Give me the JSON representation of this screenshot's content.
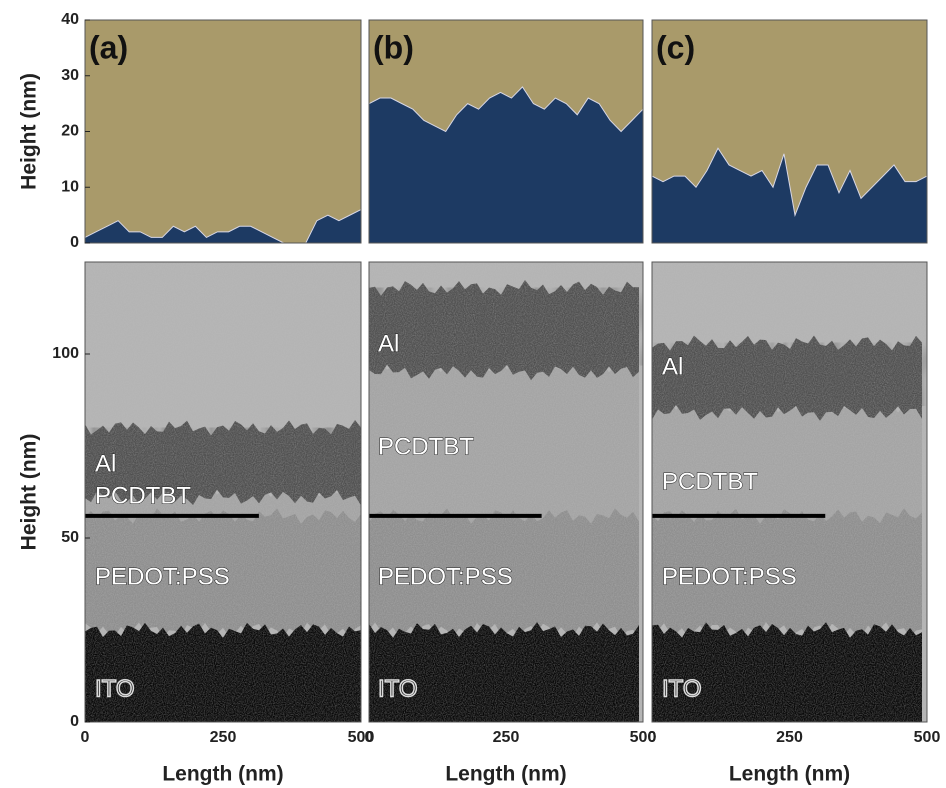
{
  "chart_data": [
    {
      "type": "area",
      "label": "(a)",
      "ylabel": "Height (nm)",
      "color": "#1d3a63",
      "background": "#a99a6a",
      "x": [
        0,
        20,
        40,
        60,
        80,
        100,
        120,
        140,
        160,
        180,
        200,
        220,
        240,
        260,
        280,
        300,
        320,
        340,
        360,
        380,
        400,
        420,
        440,
        460,
        480,
        500
      ],
      "values": [
        1,
        2,
        3,
        4,
        2,
        2,
        1,
        1,
        3,
        2,
        3,
        1,
        2,
        2,
        3,
        3,
        2,
        1,
        0,
        0,
        0,
        4,
        5,
        4,
        5,
        6
      ],
      "xlim": [
        0,
        500
      ],
      "ylim": [
        0,
        40
      ],
      "yticks": [
        0,
        10,
        20,
        30,
        40
      ]
    },
    {
      "type": "area",
      "label": "(b)",
      "color": "#1d3a63",
      "background": "#a99a6a",
      "x": [
        0,
        20,
        40,
        60,
        80,
        100,
        120,
        140,
        160,
        180,
        200,
        220,
        240,
        260,
        280,
        300,
        320,
        340,
        360,
        380,
        400,
        420,
        440,
        460,
        480,
        500
      ],
      "values": [
        25,
        26,
        26,
        25,
        24,
        22,
        21,
        20,
        23,
        25,
        24,
        26,
        27,
        26,
        28,
        25,
        24,
        26,
        25,
        23,
        26,
        25,
        22,
        20,
        22,
        24
      ],
      "xlim": [
        0,
        500
      ],
      "ylim": [
        0,
        40
      ]
    },
    {
      "type": "area",
      "label": "(c)",
      "color": "#1d3a63",
      "background": "#a99a6a",
      "x": [
        0,
        20,
        40,
        60,
        80,
        100,
        120,
        140,
        160,
        180,
        200,
        220,
        240,
        260,
        280,
        300,
        320,
        340,
        360,
        380,
        400,
        420,
        440,
        460,
        480,
        500
      ],
      "values": [
        12,
        11,
        12,
        12,
        10,
        13,
        17,
        14,
        13,
        12,
        13,
        10,
        16,
        5,
        10,
        14,
        14,
        9,
        13,
        8,
        10,
        12,
        14,
        11,
        11,
        12
      ],
      "xlim": [
        0,
        500
      ],
      "ylim": [
        0,
        40
      ]
    },
    {
      "type": "image",
      "ylabel": "Height (nm)",
      "xlabel": "Length (nm)",
      "layers": [
        "Al",
        "PCDTBT",
        "PEDOT:PSS",
        "ITO"
      ],
      "xlim": [
        0,
        500
      ],
      "xticks": [
        0,
        250,
        500
      ],
      "ylim": [
        0,
        125
      ],
      "yticks": [
        0,
        50,
        100
      ]
    },
    {
      "type": "image",
      "xlabel": "Length (nm)",
      "layers": [
        "Al",
        "PCDTBT",
        "PEDOT:PSS",
        "ITO"
      ],
      "xlim": [
        0,
        500
      ],
      "xticks": [
        0,
        250,
        500
      ],
      "ylim": [
        0,
        125
      ]
    },
    {
      "type": "image",
      "xlabel": "Length (nm)",
      "layers": [
        "Al",
        "PCDTBT",
        "PEDOT:PSS",
        "ITO"
      ],
      "xlim": [
        0,
        500
      ],
      "xticks": [
        0,
        250,
        500
      ],
      "ylim": [
        0,
        125
      ]
    }
  ]
}
